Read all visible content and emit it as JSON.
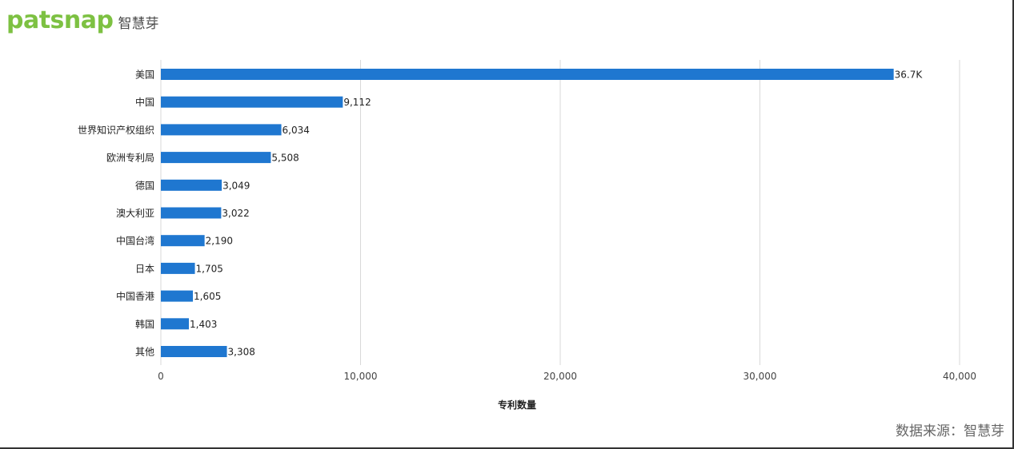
{
  "header": {
    "logo_text": "patsnap",
    "logo_color": "#7dc142",
    "sub_text": "智慧芽"
  },
  "footer": {
    "source": "数据来源：智慧芽"
  },
  "chart_data": {
    "type": "bar",
    "orientation": "horizontal",
    "categories": [
      "美国",
      "中国",
      "世界知识产权组织",
      "欧洲专利局",
      "德国",
      "澳大利亚",
      "中国台湾",
      "日本",
      "中国香港",
      "韩国",
      "其他"
    ],
    "values": [
      36700,
      9112,
      6034,
      5508,
      3049,
      3022,
      2190,
      1705,
      1605,
      1403,
      3308
    ],
    "data_labels": [
      "36.7K",
      "9,112",
      "6,034",
      "5,508",
      "3,049",
      "3,022",
      "2,190",
      "1,705",
      "1,605",
      "1,403",
      "3,308"
    ],
    "xlabel": "专利数量",
    "ylabel": "",
    "xlim": [
      0,
      40000
    ],
    "x_ticks": [
      0,
      10000,
      20000,
      30000,
      40000
    ],
    "x_tick_labels": [
      "0",
      "10,000",
      "20,000",
      "30,000",
      "40,000"
    ],
    "grid": true,
    "bar_color": "#1f77d0"
  }
}
